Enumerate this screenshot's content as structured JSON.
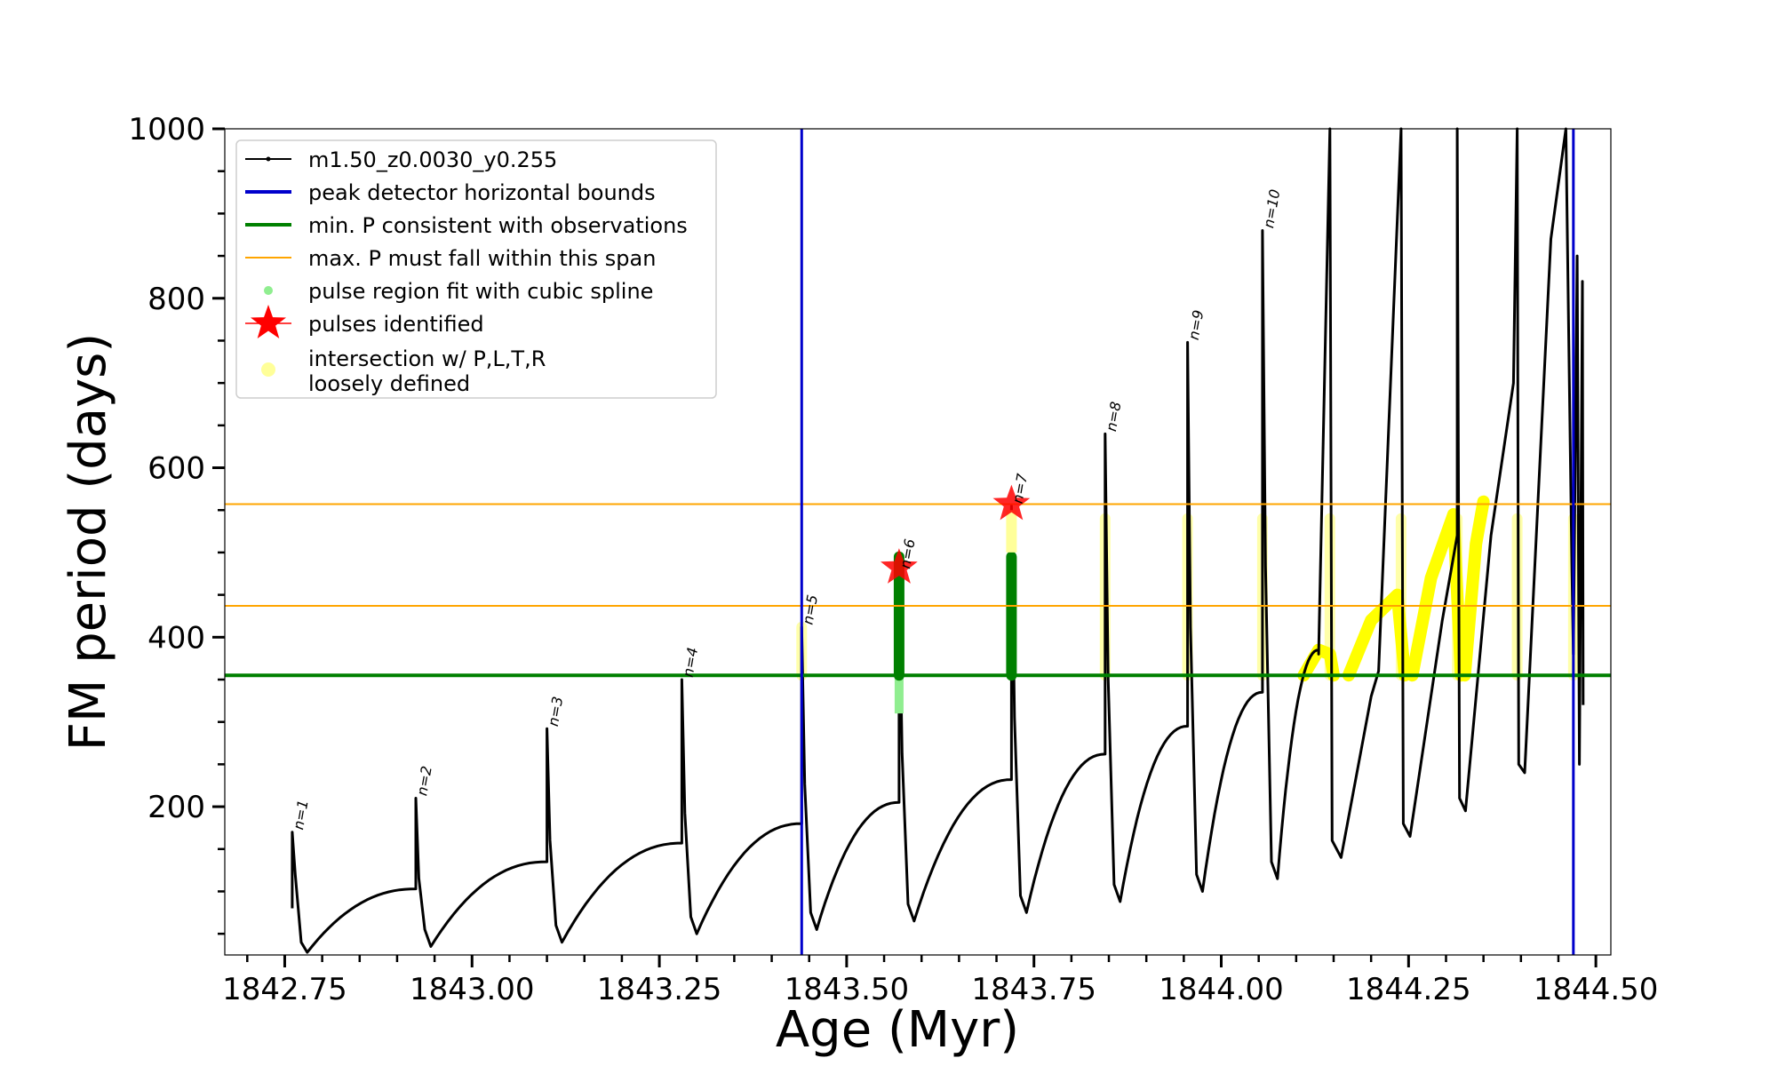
{
  "chart_data": {
    "type": "line",
    "xlabel": "Age (Myr)",
    "ylabel": "FM period (days)",
    "xlim": [
      1842.67,
      1844.52
    ],
    "ylim": [
      25,
      1000
    ],
    "x_ticks": [
      "1842.75",
      "1843.00",
      "1843.25",
      "1843.50",
      "1843.75",
      "1844.00",
      "1844.25",
      "1844.50"
    ],
    "x_tick_values": [
      1842.75,
      1843.0,
      1843.25,
      1843.5,
      1843.75,
      1844.0,
      1844.25,
      1844.5
    ],
    "y_ticks": [
      "200",
      "400",
      "600",
      "800",
      "1000"
    ],
    "y_tick_values": [
      200,
      400,
      600,
      800,
      1000
    ],
    "legend_position": "upper-left",
    "legend": [
      {
        "label": "m1.50_z0.0030_y0.255",
        "kind": "line-marker",
        "color": "#000000"
      },
      {
        "label": "peak detector horizontal bounds",
        "kind": "line",
        "color": "#0000cc"
      },
      {
        "label": "min. P consistent with observations",
        "kind": "line",
        "color": "#008000"
      },
      {
        "label": "max. P must fall within this span",
        "kind": "line",
        "color": "#ffa500"
      },
      {
        "label": "pulse region fit with cubic spline",
        "kind": "dot",
        "color": "#90ee90"
      },
      {
        "label": "pulses identified",
        "kind": "star",
        "color": "#ff0000"
      },
      {
        "label": "intersection w/ P,L,T,R",
        "label2": "loosely defined",
        "kind": "dot",
        "color": "#ffff99"
      }
    ],
    "reference_lines": {
      "vertical_blue_x": [
        1843.44,
        1844.47
      ],
      "horizontal_green_y": 355,
      "horizontal_orange_y": [
        437,
        557
      ]
    },
    "pulses": [
      {
        "label": "n=1",
        "x": 1842.76,
        "min": 28,
        "peak": 170,
        "end": 103
      },
      {
        "label": "n=2",
        "x": 1842.925,
        "min": 35,
        "peak": 210,
        "end": 135
      },
      {
        "label": "n=3",
        "x": 1843.1,
        "min": 40,
        "peak": 292,
        "end": 157
      },
      {
        "label": "n=4",
        "x": 1843.28,
        "min": 50,
        "peak": 350,
        "end": 180
      },
      {
        "label": "n=5",
        "x": 1843.44,
        "min": 55,
        "peak": 412,
        "end": 205
      },
      {
        "label": "n=6",
        "x": 1843.57,
        "min": 65,
        "peak": 478,
        "end": 232
      },
      {
        "label": "n=7",
        "x": 1843.72,
        "min": 75,
        "peak": 555,
        "end": 262
      },
      {
        "label": "n=8",
        "x": 1843.845,
        "min": 88,
        "peak": 640,
        "end": 295
      },
      {
        "label": "n=9",
        "x": 1843.955,
        "min": 100,
        "peak": 748,
        "end": 335
      },
      {
        "label": "n=10",
        "x": 1844.055,
        "min": 115,
        "peak": 880,
        "end": 385
      }
    ],
    "pulses_identified": [
      {
        "label": "n=6",
        "x": 1843.57,
        "y": 482
      },
      {
        "label": "n=7",
        "x": 1843.72,
        "y": 557
      }
    ]
  }
}
